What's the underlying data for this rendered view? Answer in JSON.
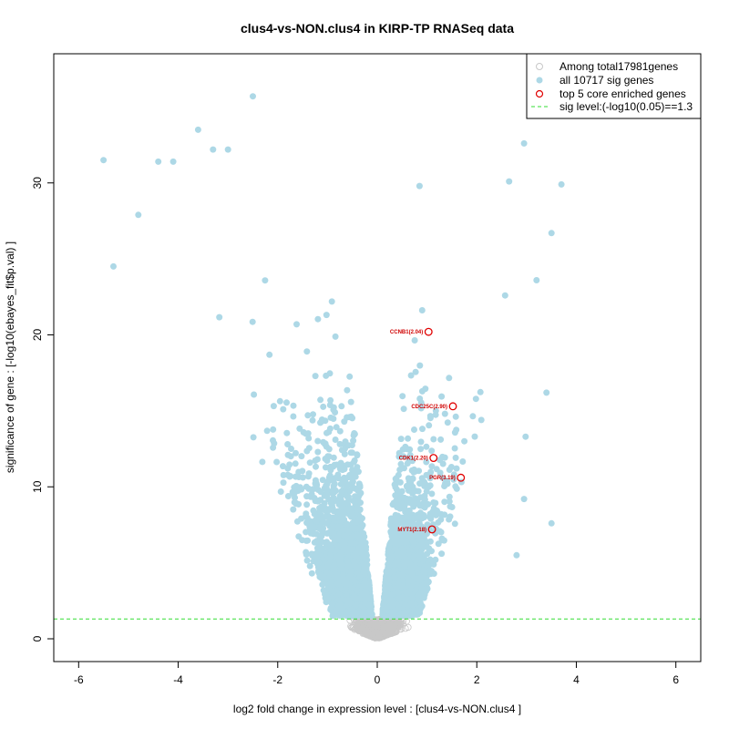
{
  "chart_data": {
    "type": "scatter",
    "title": "clus4-vs-NON.clus4 in KIRP-TP RNASeq data",
    "xlabel": "log2 fold change in expression level : [clus4-vs-NON.clus4 ]",
    "ylabel": "significance of gene : [-log10(ebayes_fit$p.val) ]",
    "xlim": [
      -6.5,
      6.5
    ],
    "ylim": [
      -1.5,
      38.5
    ],
    "x_ticks": [
      -6,
      -4,
      -2,
      0,
      2,
      4,
      6
    ],
    "y_ticks": [
      0,
      10,
      20,
      30
    ],
    "grid": false,
    "legend_position": "top-right",
    "legend": [
      {
        "label": "Among total17981genes",
        "marker": "open-circle",
        "color": "#c8c8c8"
      },
      {
        "label": "all 10717 sig genes",
        "marker": "filled-circle",
        "color": "#add8e6"
      },
      {
        "label": "top 5 core enriched genes",
        "marker": "open-circle",
        "color": "#e00000"
      },
      {
        "label": "sig level:(-log10(0.05)==1.3",
        "marker": "dashed-line",
        "color": "#33dd33"
      }
    ],
    "sig_threshold": 1.3,
    "colors": {
      "nonsig": "#c8c8c8",
      "sig": "#add8e6",
      "top": "#e00000",
      "threshold": "#33dd33"
    },
    "top_genes": [
      {
        "label": "CCNB1(2.04)",
        "x": 1.03,
        "y": 20.2
      },
      {
        "label": "CDC25C(2.90)",
        "x": 1.52,
        "y": 15.3
      },
      {
        "label": "CDK1(2.20)",
        "x": 1.13,
        "y": 11.9
      },
      {
        "label": "PGR(3.19)",
        "x": 1.68,
        "y": 10.6
      },
      {
        "label": "MYT1(2.18)",
        "x": 1.1,
        "y": 7.2
      }
    ],
    "notable_points": [
      {
        "x": -5.5,
        "y": 31.5
      },
      {
        "x": -5.3,
        "y": 24.5
      },
      {
        "x": -4.8,
        "y": 27.9
      },
      {
        "x": -4.4,
        "y": 31.4
      },
      {
        "x": -4.1,
        "y": 31.4
      },
      {
        "x": -3.6,
        "y": 33.5
      },
      {
        "x": -3.3,
        "y": 32.2
      },
      {
        "x": -3.0,
        "y": 32.2
      },
      {
        "x": -2.5,
        "y": 35.7
      },
      {
        "x": 2.95,
        "y": 32.6
      },
      {
        "x": 3.7,
        "y": 29.9
      },
      {
        "x": 2.65,
        "y": 30.1
      },
      {
        "x": 0.85,
        "y": 29.8
      },
      {
        "x": 3.5,
        "y": 26.7
      },
      {
        "x": 3.2,
        "y": 23.6
      },
      {
        "x": 3.5,
        "y": 7.6
      },
      {
        "x": 3.4,
        "y": 16.2
      },
      {
        "x": 2.98,
        "y": 13.3
      },
      {
        "x": 2.95,
        "y": 9.2
      },
      {
        "x": 2.8,
        "y": 5.5
      }
    ]
  }
}
